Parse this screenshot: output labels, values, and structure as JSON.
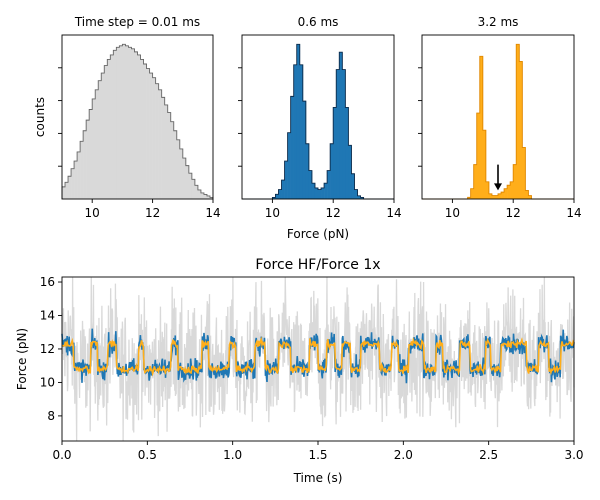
{
  "colors": {
    "hist_fill": "#d9d9d9",
    "hist_edge": "#666666",
    "blue": "#1f77b4",
    "orange": "#ffae1a",
    "trace_hf": "#d9d9d9"
  },
  "chart_data": [
    {
      "type": "bar",
      "title": "Time step = 0.01 ms",
      "xlabel": "",
      "ylabel": "counts",
      "xlim": [
        9,
        14
      ],
      "xticks": [
        10,
        12,
        14
      ],
      "grid": false,
      "style": "step-filled",
      "x": [
        9.0,
        9.1,
        9.2,
        9.3,
        9.4,
        9.5,
        9.6,
        9.7,
        9.8,
        9.9,
        10.0,
        10.1,
        10.2,
        10.3,
        10.4,
        10.5,
        10.6,
        10.7,
        10.8,
        10.9,
        11.0,
        11.1,
        11.2,
        11.3,
        11.4,
        11.5,
        11.6,
        11.7,
        11.8,
        11.9,
        12.0,
        12.1,
        12.2,
        12.3,
        12.4,
        12.5,
        12.6,
        12.7,
        12.8,
        12.9,
        13.0,
        13.1,
        13.2,
        13.3,
        13.4,
        13.5,
        13.6,
        13.7,
        13.8,
        13.9
      ],
      "values": [
        8,
        11,
        15,
        20,
        25,
        31,
        38,
        45,
        52,
        59,
        66,
        72,
        78,
        83,
        88,
        92,
        95,
        98,
        100,
        101,
        102,
        101,
        100,
        99,
        97,
        95,
        92,
        89,
        86,
        83,
        80,
        76,
        72,
        67,
        62,
        57,
        51,
        45,
        39,
        33,
        27,
        22,
        17,
        13,
        9,
        6,
        4,
        3,
        2,
        1
      ]
    },
    {
      "type": "bar",
      "title": "0.6 ms",
      "xlabel": "Force (pN)",
      "ylabel": "",
      "xlim": [
        9,
        14
      ],
      "xticks": [
        10,
        12,
        14
      ],
      "grid": false,
      "style": "step-filled",
      "x": [
        9.0,
        9.1,
        9.2,
        9.3,
        9.4,
        9.5,
        9.6,
        9.7,
        9.8,
        9.9,
        10.0,
        10.1,
        10.2,
        10.3,
        10.4,
        10.5,
        10.6,
        10.7,
        10.8,
        10.9,
        11.0,
        11.1,
        11.2,
        11.3,
        11.4,
        11.5,
        11.6,
        11.7,
        11.8,
        11.9,
        12.0,
        12.1,
        12.2,
        12.3,
        12.4,
        12.5,
        12.6,
        12.7,
        12.8,
        12.9,
        13.0,
        13.1,
        13.2,
        13.3,
        13.4,
        13.5,
        13.6,
        13.7,
        13.8,
        13.9
      ],
      "values": [
        0,
        0,
        0,
        0,
        0,
        0,
        0,
        0,
        0,
        0,
        1,
        3,
        6,
        12,
        24,
        42,
        65,
        85,
        98,
        85,
        62,
        35,
        18,
        10,
        7,
        6,
        7,
        10,
        18,
        35,
        58,
        82,
        93,
        82,
        58,
        34,
        16,
        6,
        2,
        1,
        0,
        0,
        0,
        0,
        0,
        0,
        0,
        0,
        0,
        0
      ]
    },
    {
      "type": "bar",
      "title": "3.2 ms",
      "xlabel": "",
      "ylabel": "",
      "xlim": [
        9,
        14
      ],
      "xticks": [
        10,
        12,
        14
      ],
      "grid": false,
      "style": "step-filled",
      "annotation": {
        "type": "arrow",
        "x": 11.5,
        "y_from": 20,
        "y_to": 5
      },
      "x": [
        9.0,
        9.1,
        9.2,
        9.3,
        9.4,
        9.5,
        9.6,
        9.7,
        9.8,
        9.9,
        10.0,
        10.1,
        10.2,
        10.3,
        10.4,
        10.5,
        10.6,
        10.7,
        10.8,
        10.9,
        11.0,
        11.1,
        11.2,
        11.3,
        11.4,
        11.5,
        11.6,
        11.7,
        11.8,
        11.9,
        12.0,
        12.1,
        12.2,
        12.3,
        12.4,
        12.5,
        12.6,
        12.7,
        12.8,
        12.9,
        13.0,
        13.1,
        13.2,
        13.3,
        13.4,
        13.5,
        13.6,
        13.7,
        13.8,
        13.9
      ],
      "values": [
        0,
        0,
        0,
        0,
        0,
        0,
        0,
        0,
        0,
        0,
        0,
        0,
        0,
        0,
        0,
        1,
        6,
        20,
        50,
        83,
        40,
        10,
        3,
        2,
        2,
        3,
        4,
        6,
        8,
        10,
        20,
        90,
        80,
        30,
        5,
        2,
        0,
        0,
        0,
        0,
        0,
        0,
        0,
        0,
        0,
        0,
        0,
        0,
        0,
        0
      ]
    },
    {
      "type": "line",
      "title": "Force HF/Force 1x",
      "xlabel": "Time (s)",
      "ylabel": "Force (pN)",
      "xlim": [
        0,
        3.0
      ],
      "ylim": [
        6.5,
        16.3
      ],
      "xticks": [
        0.0,
        0.5,
        1.0,
        1.5,
        2.0,
        2.5,
        3.0
      ],
      "yticks": [
        8,
        10,
        12,
        14,
        16
      ],
      "grid": false,
      "series_style": [
        "light-gray thick noisy",
        "blue",
        "orange"
      ],
      "state_levels": {
        "low": 10.8,
        "high": 12.3
      },
      "dwell_sequence": [
        [
          0.0,
          12.3
        ],
        [
          0.07,
          10.8
        ],
        [
          0.17,
          12.3
        ],
        [
          0.21,
          10.8
        ],
        [
          0.27,
          12.3
        ],
        [
          0.32,
          10.8
        ],
        [
          0.45,
          12.3
        ],
        [
          0.48,
          10.8
        ],
        [
          0.64,
          12.3
        ],
        [
          0.68,
          10.8
        ],
        [
          0.82,
          12.3
        ],
        [
          0.86,
          10.8
        ],
        [
          0.98,
          12.3
        ],
        [
          1.02,
          10.8
        ],
        [
          1.13,
          12.3
        ],
        [
          1.19,
          10.8
        ],
        [
          1.27,
          12.3
        ],
        [
          1.34,
          10.8
        ],
        [
          1.45,
          12.3
        ],
        [
          1.5,
          10.8
        ],
        [
          1.55,
          12.3
        ],
        [
          1.6,
          10.8
        ],
        [
          1.64,
          12.3
        ],
        [
          1.69,
          10.8
        ],
        [
          1.75,
          12.3
        ],
        [
          1.86,
          10.8
        ],
        [
          1.93,
          12.3
        ],
        [
          1.97,
          10.8
        ],
        [
          2.03,
          12.3
        ],
        [
          2.12,
          10.8
        ],
        [
          2.19,
          12.3
        ],
        [
          2.23,
          10.8
        ],
        [
          2.33,
          12.3
        ],
        [
          2.39,
          10.8
        ],
        [
          2.48,
          12.3
        ],
        [
          2.51,
          10.8
        ],
        [
          2.57,
          12.3
        ],
        [
          2.72,
          10.8
        ],
        [
          2.79,
          12.3
        ],
        [
          2.85,
          10.8
        ],
        [
          2.92,
          12.3
        ],
        [
          3.0,
          12.3
        ]
      ],
      "noise_amplitude": {
        "gray": 2.5,
        "blue": 0.45,
        "orange": 0.18
      }
    }
  ]
}
